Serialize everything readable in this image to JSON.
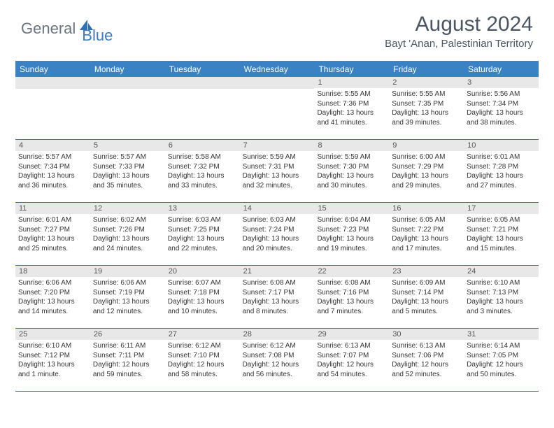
{
  "logo": {
    "general": "General",
    "blue": "Blue"
  },
  "title": "August 2024",
  "location": "Bayt 'Anan, Palestinian Territory",
  "weekdays": [
    "Sunday",
    "Monday",
    "Tuesday",
    "Wednesday",
    "Thursday",
    "Friday",
    "Saturday"
  ],
  "colors": {
    "header_bg": "#3b82c4",
    "header_text": "#ffffff",
    "daynum_bg": "#e8e8e8",
    "border": "#4a72a0",
    "title_text": "#4b5563"
  },
  "days": [
    {
      "n": "",
      "sunrise": "",
      "sunset": "",
      "daylight": ""
    },
    {
      "n": "",
      "sunrise": "",
      "sunset": "",
      "daylight": ""
    },
    {
      "n": "",
      "sunrise": "",
      "sunset": "",
      "daylight": ""
    },
    {
      "n": "",
      "sunrise": "",
      "sunset": "",
      "daylight": ""
    },
    {
      "n": "1",
      "sunrise": "Sunrise: 5:55 AM",
      "sunset": "Sunset: 7:36 PM",
      "daylight": "Daylight: 13 hours and 41 minutes."
    },
    {
      "n": "2",
      "sunrise": "Sunrise: 5:55 AM",
      "sunset": "Sunset: 7:35 PM",
      "daylight": "Daylight: 13 hours and 39 minutes."
    },
    {
      "n": "3",
      "sunrise": "Sunrise: 5:56 AM",
      "sunset": "Sunset: 7:34 PM",
      "daylight": "Daylight: 13 hours and 38 minutes."
    },
    {
      "n": "4",
      "sunrise": "Sunrise: 5:57 AM",
      "sunset": "Sunset: 7:34 PM",
      "daylight": "Daylight: 13 hours and 36 minutes."
    },
    {
      "n": "5",
      "sunrise": "Sunrise: 5:57 AM",
      "sunset": "Sunset: 7:33 PM",
      "daylight": "Daylight: 13 hours and 35 minutes."
    },
    {
      "n": "6",
      "sunrise": "Sunrise: 5:58 AM",
      "sunset": "Sunset: 7:32 PM",
      "daylight": "Daylight: 13 hours and 33 minutes."
    },
    {
      "n": "7",
      "sunrise": "Sunrise: 5:59 AM",
      "sunset": "Sunset: 7:31 PM",
      "daylight": "Daylight: 13 hours and 32 minutes."
    },
    {
      "n": "8",
      "sunrise": "Sunrise: 5:59 AM",
      "sunset": "Sunset: 7:30 PM",
      "daylight": "Daylight: 13 hours and 30 minutes."
    },
    {
      "n": "9",
      "sunrise": "Sunrise: 6:00 AM",
      "sunset": "Sunset: 7:29 PM",
      "daylight": "Daylight: 13 hours and 29 minutes."
    },
    {
      "n": "10",
      "sunrise": "Sunrise: 6:01 AM",
      "sunset": "Sunset: 7:28 PM",
      "daylight": "Daylight: 13 hours and 27 minutes."
    },
    {
      "n": "11",
      "sunrise": "Sunrise: 6:01 AM",
      "sunset": "Sunset: 7:27 PM",
      "daylight": "Daylight: 13 hours and 25 minutes."
    },
    {
      "n": "12",
      "sunrise": "Sunrise: 6:02 AM",
      "sunset": "Sunset: 7:26 PM",
      "daylight": "Daylight: 13 hours and 24 minutes."
    },
    {
      "n": "13",
      "sunrise": "Sunrise: 6:03 AM",
      "sunset": "Sunset: 7:25 PM",
      "daylight": "Daylight: 13 hours and 22 minutes."
    },
    {
      "n": "14",
      "sunrise": "Sunrise: 6:03 AM",
      "sunset": "Sunset: 7:24 PM",
      "daylight": "Daylight: 13 hours and 20 minutes."
    },
    {
      "n": "15",
      "sunrise": "Sunrise: 6:04 AM",
      "sunset": "Sunset: 7:23 PM",
      "daylight": "Daylight: 13 hours and 19 minutes."
    },
    {
      "n": "16",
      "sunrise": "Sunrise: 6:05 AM",
      "sunset": "Sunset: 7:22 PM",
      "daylight": "Daylight: 13 hours and 17 minutes."
    },
    {
      "n": "17",
      "sunrise": "Sunrise: 6:05 AM",
      "sunset": "Sunset: 7:21 PM",
      "daylight": "Daylight: 13 hours and 15 minutes."
    },
    {
      "n": "18",
      "sunrise": "Sunrise: 6:06 AM",
      "sunset": "Sunset: 7:20 PM",
      "daylight": "Daylight: 13 hours and 14 minutes."
    },
    {
      "n": "19",
      "sunrise": "Sunrise: 6:06 AM",
      "sunset": "Sunset: 7:19 PM",
      "daylight": "Daylight: 13 hours and 12 minutes."
    },
    {
      "n": "20",
      "sunrise": "Sunrise: 6:07 AM",
      "sunset": "Sunset: 7:18 PM",
      "daylight": "Daylight: 13 hours and 10 minutes."
    },
    {
      "n": "21",
      "sunrise": "Sunrise: 6:08 AM",
      "sunset": "Sunset: 7:17 PM",
      "daylight": "Daylight: 13 hours and 8 minutes."
    },
    {
      "n": "22",
      "sunrise": "Sunrise: 6:08 AM",
      "sunset": "Sunset: 7:16 PM",
      "daylight": "Daylight: 13 hours and 7 minutes."
    },
    {
      "n": "23",
      "sunrise": "Sunrise: 6:09 AM",
      "sunset": "Sunset: 7:14 PM",
      "daylight": "Daylight: 13 hours and 5 minutes."
    },
    {
      "n": "24",
      "sunrise": "Sunrise: 6:10 AM",
      "sunset": "Sunset: 7:13 PM",
      "daylight": "Daylight: 13 hours and 3 minutes."
    },
    {
      "n": "25",
      "sunrise": "Sunrise: 6:10 AM",
      "sunset": "Sunset: 7:12 PM",
      "daylight": "Daylight: 13 hours and 1 minute."
    },
    {
      "n": "26",
      "sunrise": "Sunrise: 6:11 AM",
      "sunset": "Sunset: 7:11 PM",
      "daylight": "Daylight: 12 hours and 59 minutes."
    },
    {
      "n": "27",
      "sunrise": "Sunrise: 6:12 AM",
      "sunset": "Sunset: 7:10 PM",
      "daylight": "Daylight: 12 hours and 58 minutes."
    },
    {
      "n": "28",
      "sunrise": "Sunrise: 6:12 AM",
      "sunset": "Sunset: 7:08 PM",
      "daylight": "Daylight: 12 hours and 56 minutes."
    },
    {
      "n": "29",
      "sunrise": "Sunrise: 6:13 AM",
      "sunset": "Sunset: 7:07 PM",
      "daylight": "Daylight: 12 hours and 54 minutes."
    },
    {
      "n": "30",
      "sunrise": "Sunrise: 6:13 AM",
      "sunset": "Sunset: 7:06 PM",
      "daylight": "Daylight: 12 hours and 52 minutes."
    },
    {
      "n": "31",
      "sunrise": "Sunrise: 6:14 AM",
      "sunset": "Sunset: 7:05 PM",
      "daylight": "Daylight: 12 hours and 50 minutes."
    }
  ]
}
